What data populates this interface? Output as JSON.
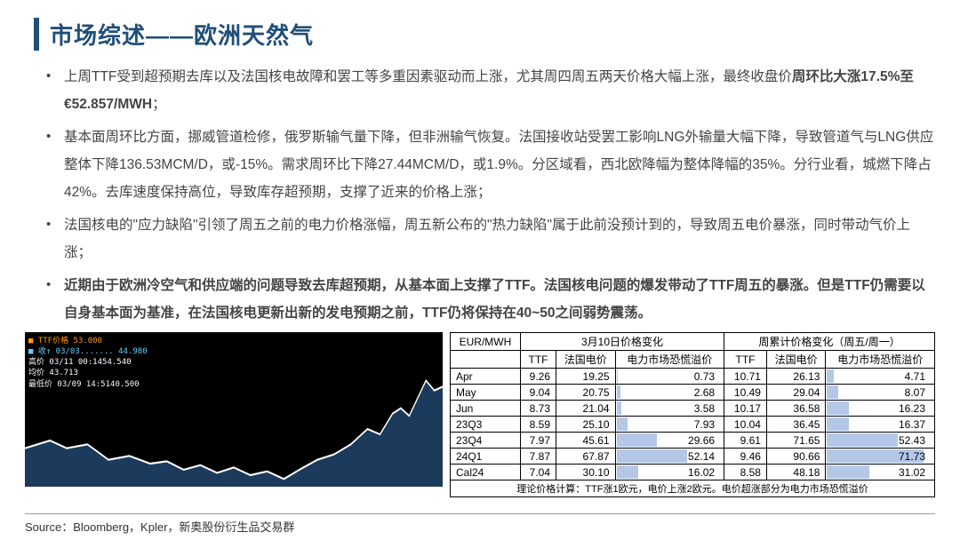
{
  "title": "市场综述——欧洲天然气",
  "bullets": [
    {
      "pre": "上周TTF受到超预期去库以及法国核电故障和罢工等多重因素驱动而上涨，尤其周四周五两天价格大幅上涨，最终收盘价",
      "bold": "周环比大涨17.5%至€52.857/MWH",
      "post": "；"
    },
    {
      "pre": "基本面周环比方面，挪威管道检修，俄罗斯输气量下降，但非洲输气恢复。法国接收站受罢工影响LNG外输量大幅下降，导致管道气与LNG供应整体下降136.53MCM/D，或-15%。需求周环比下降27.44MCM/D，或1.9%。分区域看，西北欧降幅为整体降幅的35%。分行业看，城燃下降占42%。去库速度保持高位，导致库存超预期，支撑了近来的价格上涨；",
      "bold": "",
      "post": ""
    },
    {
      "pre": "法国核电的\"应力缺陷\"引领了周五之前的电力价格涨幅，周五新公布的\"热力缺陷\"属于此前没预计到的，导致周五电价暴涨，同时带动气价上涨；",
      "bold": "",
      "post": ""
    },
    {
      "pre": "",
      "bold": "近期由于欧洲冷空气和供应端的问题导致去库超预期，从基本面上支撑了TTF。法国核电问题的爆发带动了TTF周五的暴涨。但是TTF仍需要以自身基本面为基准，在法国核电更新出新的发电预期之前，TTF仍将保持在40~50之间弱势震荡。",
      "post": ""
    }
  ],
  "chart": {
    "legend": [
      "■ TTF价格          53.000",
      "■ 收↑ 03/03....... 44.980",
      "  高价 03/11 00:1454.540",
      "  均价               43.713",
      "  最低价 03/09 14:5140.500"
    ],
    "line_color": "#ffffff",
    "area_color": "#1b3a5c",
    "bg": "#000000",
    "xlim": [
      0,
      100
    ],
    "ylim": [
      40,
      55
    ],
    "points": [
      [
        0,
        45
      ],
      [
        6,
        46
      ],
      [
        10,
        45
      ],
      [
        15,
        45.5
      ],
      [
        20,
        43.5
      ],
      [
        25,
        44
      ],
      [
        30,
        43
      ],
      [
        34,
        43.3
      ],
      [
        38,
        42.2
      ],
      [
        42,
        42.8
      ],
      [
        46,
        41.8
      ],
      [
        50,
        42.5
      ],
      [
        54,
        41.5
      ],
      [
        58,
        42
      ],
      [
        62,
        41
      ],
      [
        66,
        42.3
      ],
      [
        70,
        43.5
      ],
      [
        74,
        44.2
      ],
      [
        78,
        45.5
      ],
      [
        82,
        47.5
      ],
      [
        85,
        46.8
      ],
      [
        88,
        49.5
      ],
      [
        90,
        50.2
      ],
      [
        92,
        49.2
      ],
      [
        94,
        51.5
      ],
      [
        96,
        53.8
      ],
      [
        98,
        52.5
      ],
      [
        100,
        53.0
      ]
    ]
  },
  "table": {
    "header1": {
      "unit": "EUR/MWH",
      "g1": "3月10日价格变化",
      "g2": "周累计价格变化（周五/周一）"
    },
    "header2": [
      "",
      "TTF",
      "法国电价",
      "电力市场恐慌溢价",
      "TTF",
      "法国电价",
      "电力市场恐慌溢价"
    ],
    "max_bar": 80,
    "rows": [
      {
        "label": "Apr",
        "a": 9.26,
        "b": 19.25,
        "c": 0.73,
        "d": 10.71,
        "e": 26.13,
        "f": 4.71
      },
      {
        "label": "May",
        "a": 9.04,
        "b": 20.75,
        "c": 2.68,
        "d": 10.49,
        "e": 29.04,
        "f": 8.07
      },
      {
        "label": "Jun",
        "a": 8.73,
        "b": 21.04,
        "c": 3.58,
        "d": 10.17,
        "e": 36.58,
        "f": 16.23
      },
      {
        "label": "23Q3",
        "a": 8.59,
        "b": 25.1,
        "c": 7.93,
        "d": 10.04,
        "e": 36.45,
        "f": 16.37
      },
      {
        "label": "23Q4",
        "a": 7.97,
        "b": 45.61,
        "c": 29.66,
        "d": 9.61,
        "e": 71.65,
        "f": 52.43
      },
      {
        "label": "24Q1",
        "a": 7.87,
        "b": 67.87,
        "c": 52.14,
        "d": 9.46,
        "e": 90.66,
        "f": 71.73
      },
      {
        "label": "Cal24",
        "a": 7.04,
        "b": 30.1,
        "c": 16.02,
        "d": 8.58,
        "e": 48.18,
        "f": 31.02
      }
    ],
    "footnote": "理论价格计算：TTF涨1欧元，电价上涨2欧元。电价超涨部分为电力市场恐慌溢价"
  },
  "source": "Source：Bloomberg，Kpler，新奥股份衍生品交易群"
}
